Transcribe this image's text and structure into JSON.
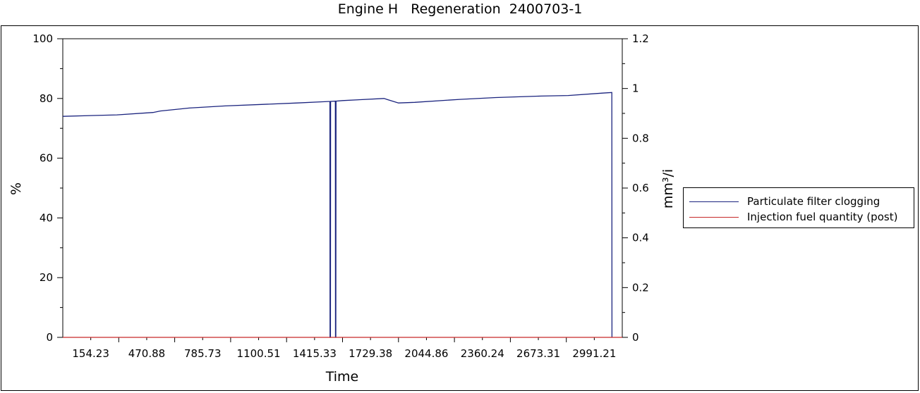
{
  "title": "Engine H   Regeneration  2400703-1",
  "chart_data": {
    "type": "line",
    "title": "Engine H   Regeneration  2400703-1",
    "xlabel": "Time",
    "ylabel_left": "%",
    "ylabel_right": "mm³/i",
    "xlim": [
      0,
      3100
    ],
    "ylim_left": [
      0,
      100
    ],
    "ylim_right": [
      0,
      1.2
    ],
    "x_ticks": [
      "154.23",
      "470.88",
      "785.73",
      "1100.51",
      "1415.33",
      "1729.38",
      "2044.86",
      "2360.24",
      "2673.31",
      "2991.21"
    ],
    "y_ticks_left": [
      "0",
      "20",
      "40",
      "60",
      "80",
      "100"
    ],
    "y_ticks_right": [
      "0",
      "0.2",
      "0.4",
      "0.6",
      "0.8",
      "1",
      "1.2"
    ],
    "grid": false,
    "legend_position": "right",
    "series": [
      {
        "name": "Particulate filter clogging",
        "axis": "left",
        "color": "#1a237e",
        "x": [
          0,
          300,
          500,
          540,
          700,
          900,
          1100,
          1300,
          1480,
          1481,
          1483,
          1484,
          1510,
          1511,
          1513,
          1514,
          1550,
          1650,
          1780,
          1800,
          1860,
          1950,
          2200,
          2400,
          2650,
          2800,
          2990,
          3042,
          3043
        ],
        "y": [
          74,
          74.5,
          75.3,
          75.8,
          76.8,
          77.5,
          78.0,
          78.5,
          79.0,
          0,
          0,
          79.0,
          79.1,
          0,
          0,
          79.1,
          79.3,
          79.6,
          80.0,
          79.6,
          78.5,
          78.7,
          79.7,
          80.3,
          80.8,
          81.0,
          81.8,
          82.0,
          0
        ]
      },
      {
        "name": "Injection fuel quantity (post)",
        "axis": "right",
        "color": "#c62828",
        "x": [
          0,
          3100
        ],
        "y": [
          0,
          0
        ]
      }
    ]
  }
}
